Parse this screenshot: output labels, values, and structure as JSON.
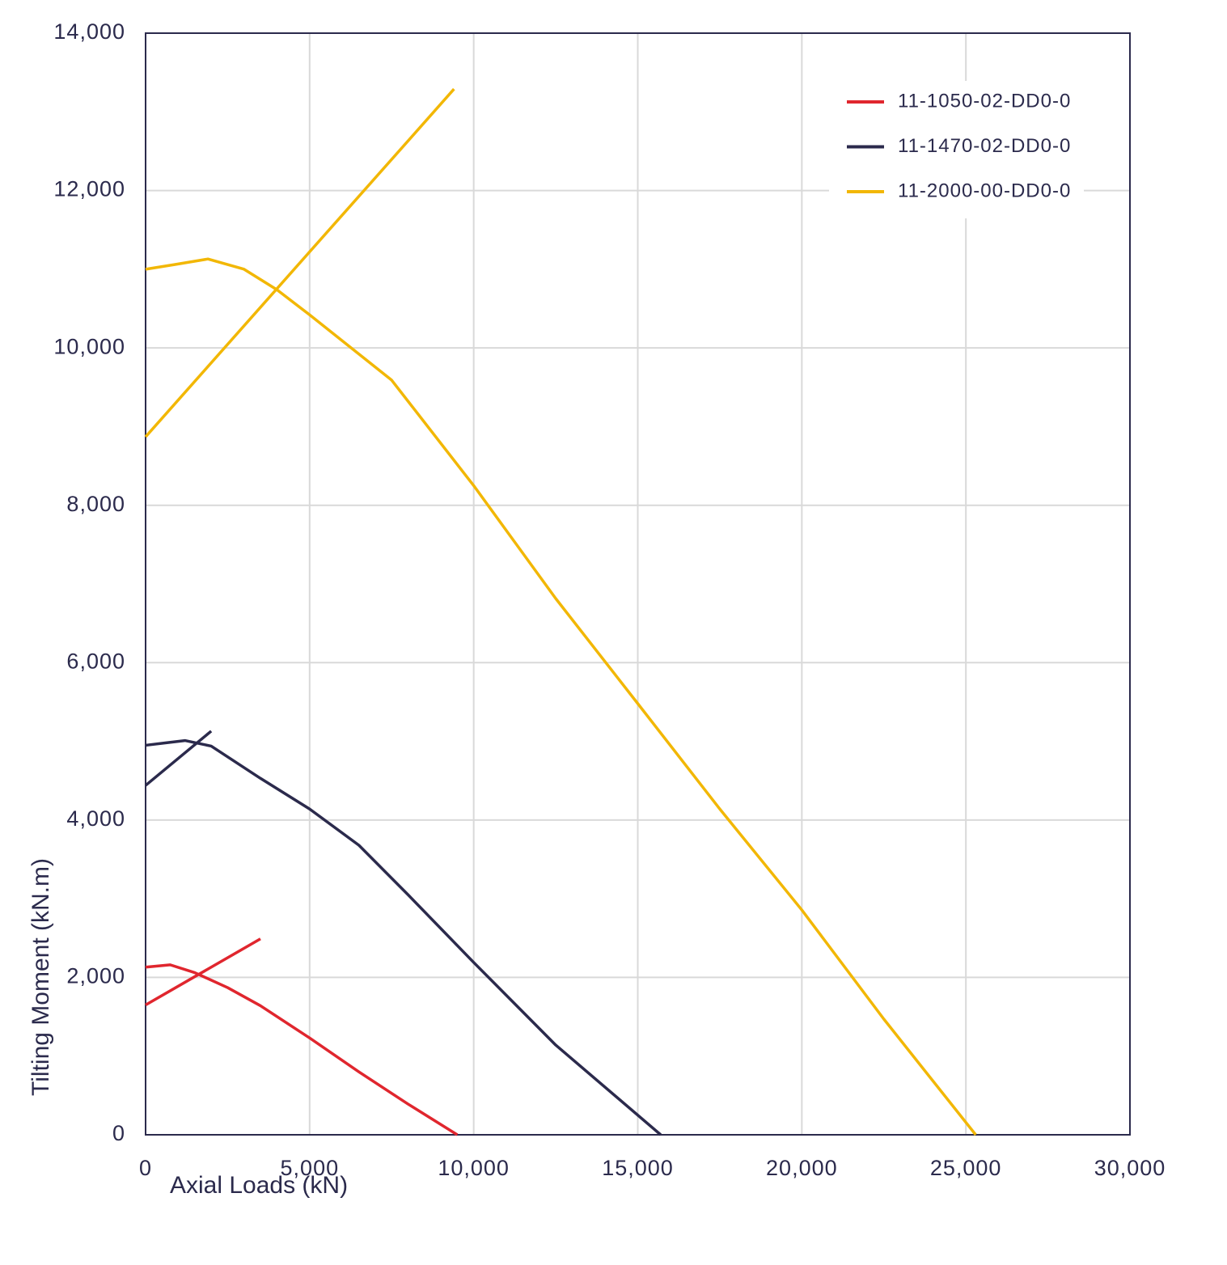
{
  "chart_data": {
    "type": "line",
    "x_label": "Axial Loads (kN)",
    "y_label": "Tilting Moment (kN.m)",
    "xlim": [
      0,
      30000
    ],
    "ylim": [
      0,
      14000
    ],
    "xticks": [
      0,
      {
        "value": 5000,
        "label": "5,000"
      },
      {
        "value": 10000,
        "label": "10,000"
      },
      {
        "value": 15000,
        "label": "15,000"
      },
      {
        "value": 20000,
        "label": "20,000"
      },
      {
        "value": 25000,
        "label": "25,000"
      },
      {
        "value": 30000,
        "label": "30,000"
      }
    ],
    "yticks": [
      0,
      {
        "value": 2000,
        "label": "2,000"
      },
      {
        "value": 4000,
        "label": "4,000"
      },
      {
        "value": 6000,
        "label": "6,000"
      },
      {
        "value": 8000,
        "label": "8,000"
      },
      {
        "value": 10000,
        "label": "10,000"
      },
      {
        "value": 12000,
        "label": "12,000"
      },
      {
        "value": 14000,
        "label": "14,000"
      }
    ],
    "grid": true,
    "legend": "upper-right",
    "series": [
      {
        "name": "11-1050-02-DD0-0",
        "color": "#e0262e",
        "x": [
          0,
          750,
          1500,
          2500,
          3500,
          5000,
          6500,
          8000,
          9500,
          null,
          0,
          3500
        ],
        "values": [
          2130,
          2160,
          2060,
          1870,
          1640,
          1230,
          800,
          390,
          0,
          null,
          1650,
          2490
        ]
      },
      {
        "name": "11-1470-02-DD0-0",
        "color": "#2b2a4c",
        "x": [
          0,
          600,
          1200,
          2000,
          3500,
          5000,
          6500,
          8000,
          10000,
          12500,
          15700,
          null,
          0,
          2000
        ],
        "values": [
          4950,
          4980,
          5010,
          4940,
          4530,
          4140,
          3680,
          3050,
          2190,
          1140,
          0,
          null,
          4440,
          5130
        ]
      },
      {
        "name": "11-2000-00-DD0-0",
        "color": "#f2b705",
        "x": [
          0,
          900,
          1900,
          3000,
          4000,
          5000,
          7500,
          10000,
          12500,
          15000,
          17500,
          20000,
          22500,
          25300,
          null,
          0,
          9400
        ],
        "values": [
          11000,
          11060,
          11130,
          11000,
          10740,
          10420,
          9590,
          8250,
          6815,
          5480,
          4140,
          2857,
          1470,
          0,
          null,
          8870,
          13290
        ]
      }
    ]
  }
}
